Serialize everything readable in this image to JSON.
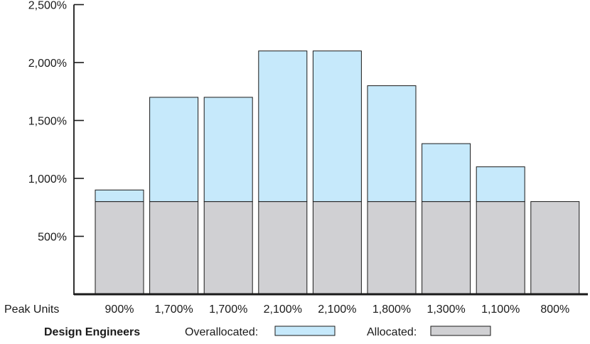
{
  "chart_data": {
    "type": "bar",
    "stacked": true,
    "categories": [
      "900%",
      "1,700%",
      "1,700%",
      "2,100%",
      "2,100%",
      "1,800%",
      "1,300%",
      "1,100%",
      "800%"
    ],
    "series": [
      {
        "name": "Allocated:",
        "color": "#d0d0d3",
        "values": [
          800,
          800,
          800,
          800,
          800,
          800,
          800,
          800,
          800
        ]
      },
      {
        "name": "Overallocated:",
        "color": "#c6e9fb",
        "values": [
          100,
          900,
          900,
          1300,
          1300,
          1000,
          500,
          300,
          0
        ]
      }
    ],
    "ylim": [
      0,
      2500
    ],
    "yticks": [
      {
        "value": 500,
        "label": "500%"
      },
      {
        "value": 1000,
        "label": "1,000%"
      },
      {
        "value": 1500,
        "label": "1,500%"
      },
      {
        "value": 2000,
        "label": "2,000%"
      },
      {
        "value": 2500,
        "label": "2,500%"
      }
    ],
    "row_label": "Peak Units",
    "legend": {
      "title": "Design Engineers",
      "placement": "bottom",
      "items": [
        {
          "label": "Overallocated:",
          "color": "#c6e9fb"
        },
        {
          "label": "Allocated:",
          "color": "#d0d0d3"
        }
      ]
    },
    "grid": false
  }
}
